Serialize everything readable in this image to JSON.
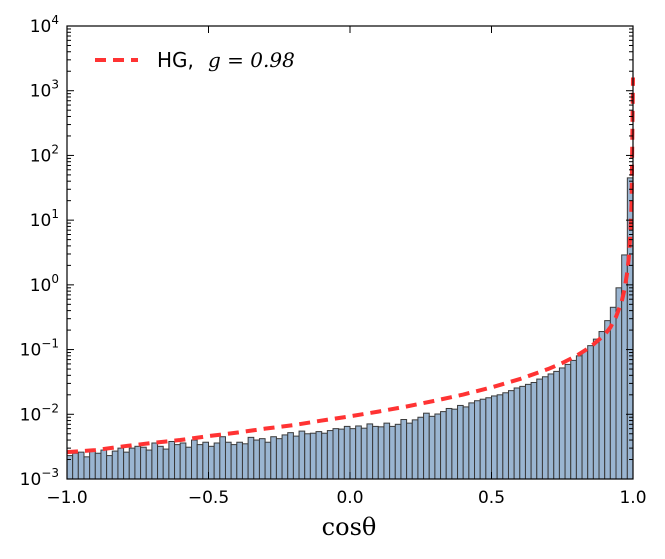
{
  "chart_data": {
    "type": "bar",
    "xlabel": "cosθ",
    "ylabel": "",
    "xlim": [
      -1.0,
      1.0
    ],
    "ylim": [
      0.001,
      10000
    ],
    "yscale": "log",
    "x_ticks": [
      "−1.0",
      "−0.5",
      "0.0",
      "0.5",
      "1.0"
    ],
    "y_ticks": [
      {
        "base": "10",
        "exp": "−3"
      },
      {
        "base": "10",
        "exp": "−2"
      },
      {
        "base": "10",
        "exp": "−1"
      },
      {
        "base": "10",
        "exp": "0"
      },
      {
        "base": "10",
        "exp": "1"
      },
      {
        "base": "10",
        "exp": "2"
      },
      {
        "base": "10",
        "exp": "3"
      },
      {
        "base": "10",
        "exp": "4"
      }
    ],
    "legend": {
      "placement": "top-left",
      "label_text": "HG, ",
      "label_math": "g = 0.98"
    },
    "histogram": {
      "color": "#9ab5d1",
      "edge_color": "#3a3a3a",
      "bin_edges_range": [
        -1.0,
        1.0
      ],
      "n_bins": 100,
      "values": [
        0.0023,
        0.0025,
        0.0026,
        0.0022,
        0.0027,
        0.0025,
        0.0028,
        0.0023,
        0.0027,
        0.003,
        0.0026,
        0.003,
        0.0032,
        0.0031,
        0.0028,
        0.0036,
        0.0032,
        0.0029,
        0.0038,
        0.0034,
        0.0036,
        0.0031,
        0.004,
        0.0034,
        0.0037,
        0.0032,
        0.0036,
        0.0045,
        0.0037,
        0.0034,
        0.0037,
        0.0035,
        0.0044,
        0.004,
        0.0042,
        0.0037,
        0.0045,
        0.0042,
        0.0048,
        0.0052,
        0.0046,
        0.0055,
        0.005,
        0.0051,
        0.0054,
        0.0051,
        0.0056,
        0.006,
        0.0059,
        0.0065,
        0.006,
        0.0066,
        0.0061,
        0.0071,
        0.0065,
        0.0064,
        0.0073,
        0.0065,
        0.007,
        0.0083,
        0.0073,
        0.0082,
        0.009,
        0.0104,
        0.0093,
        0.0101,
        0.011,
        0.0123,
        0.012,
        0.0137,
        0.013,
        0.015,
        0.0162,
        0.0171,
        0.018,
        0.0192,
        0.02,
        0.0215,
        0.0232,
        0.0255,
        0.027,
        0.029,
        0.031,
        0.035,
        0.038,
        0.042,
        0.046,
        0.052,
        0.059,
        0.068,
        0.08,
        0.095,
        0.115,
        0.145,
        0.19,
        0.28,
        0.45,
        0.9,
        2.9,
        45.0
      ]
    },
    "series": [
      {
        "style": "dashed",
        "color": "#ff3333",
        "x": [
          -1.0,
          -0.9,
          -0.8,
          -0.7,
          -0.6,
          -0.5,
          -0.4,
          -0.3,
          -0.2,
          -0.1,
          0.0,
          0.1,
          0.2,
          0.3,
          0.4,
          0.5,
          0.6,
          0.7,
          0.75,
          0.8,
          0.85,
          0.9,
          0.92,
          0.94,
          0.96,
          0.97,
          0.98,
          0.985,
          0.99,
          0.995,
          1.0
        ],
        "y": [
          0.0026,
          0.0028,
          0.0032,
          0.0036,
          0.004,
          0.0046,
          0.0052,
          0.006,
          0.0068,
          0.008,
          0.0093,
          0.011,
          0.0132,
          0.0162,
          0.0202,
          0.026,
          0.035,
          0.05,
          0.062,
          0.08,
          0.11,
          0.17,
          0.22,
          0.32,
          0.55,
          0.85,
          1.6,
          2.6,
          5.5,
          18.0,
          1600.0
        ]
      }
    ]
  }
}
